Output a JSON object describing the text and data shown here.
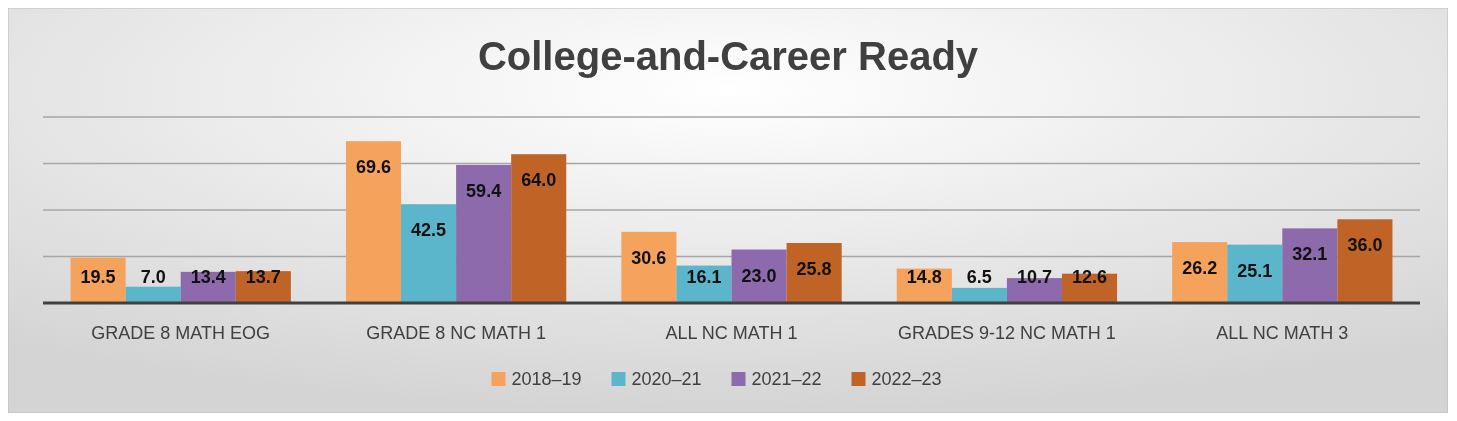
{
  "chart_data": {
    "type": "bar",
    "title": "College-and-Career Ready",
    "categories": [
      "GRADE 8 MATH EOG",
      "GRADE 8 NC MATH 1",
      "ALL NC MATH 1",
      "GRADES 9-12 NC MATH 1",
      "ALL NC MATH 3"
    ],
    "series": [
      {
        "name": "2018–19",
        "color": "#f5a25d",
        "values": [
          19.5,
          69.6,
          30.6,
          14.8,
          26.2
        ],
        "value_labels": [
          "19.5",
          "69.6",
          "30.6",
          "14.8",
          "26.2"
        ]
      },
      {
        "name": "2020–21",
        "color": "#5bb6cb",
        "values": [
          7.0,
          42.5,
          16.1,
          6.5,
          25.1
        ],
        "value_labels": [
          "7.0",
          "42.5",
          "16.1",
          "6.5",
          "25.1"
        ]
      },
      {
        "name": "2021–22",
        "color": "#8c6aab",
        "values": [
          13.4,
          59.4,
          23.0,
          10.7,
          32.1
        ],
        "value_labels": [
          "13.4",
          "59.4",
          "23.0",
          "10.7",
          "32.1"
        ]
      },
      {
        "name": "2022–23",
        "color": "#bf6327",
        "values": [
          13.7,
          64.0,
          25.8,
          12.6,
          36.0
        ],
        "value_labels": [
          "13.7",
          "64.0",
          "25.8",
          "12.6",
          "36.0"
        ]
      }
    ],
    "ylim": [
      0,
      80
    ],
    "yticks": [
      {
        "value": 0,
        "label": null
      },
      {
        "value": 20,
        "label": null
      },
      {
        "value": 40,
        "label": null
      },
      {
        "value": 60,
        "label": null
      },
      {
        "value": 80,
        "label": null
      }
    ],
    "grid": "y",
    "tick_labels": "x",
    "legend": "bottom"
  }
}
